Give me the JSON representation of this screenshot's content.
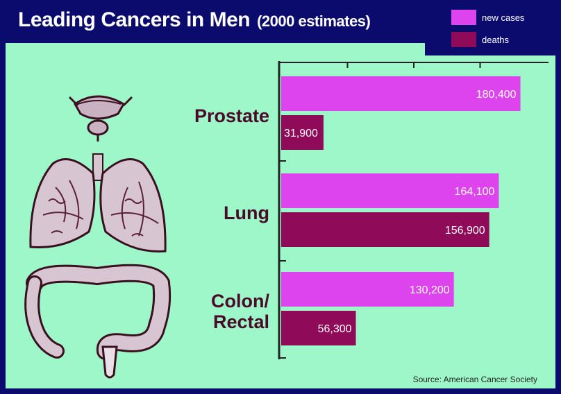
{
  "header": {
    "title": "Leading Cancers in Men",
    "subtitle": "(2000 estimates)"
  },
  "legend": {
    "items": [
      {
        "label": "new cases",
        "color": "#dd44ee"
      },
      {
        "label": "deaths",
        "color": "#900a5a"
      }
    ]
  },
  "source": "Source:  American Cancer Society",
  "illustrations": [
    "bladder-prostate-icon",
    "lungs-icon",
    "colon-icon"
  ],
  "chart_data": {
    "type": "bar",
    "orientation": "horizontal",
    "categories": [
      {
        "lines": [
          "Prostate"
        ]
      },
      {
        "lines": [
          "Lung"
        ]
      },
      {
        "lines": [
          "Colon/",
          "Rectal"
        ]
      }
    ],
    "series": [
      {
        "name": "new cases",
        "color": "#dd44ee",
        "values": [
          180400,
          164100,
          130200
        ],
        "labels": [
          "180,400",
          "164,100",
          "130,200"
        ]
      },
      {
        "name": "deaths",
        "color": "#900a5a",
        "values": [
          31900,
          156900,
          56300
        ],
        "labels": [
          "31,900",
          "156,900",
          "56,300"
        ]
      }
    ],
    "title": "Leading Cancers in Men",
    "subtitle": "(2000 estimates)",
    "xlim": [
      0,
      200000
    ],
    "grid": false,
    "legend_position": "top-right"
  }
}
